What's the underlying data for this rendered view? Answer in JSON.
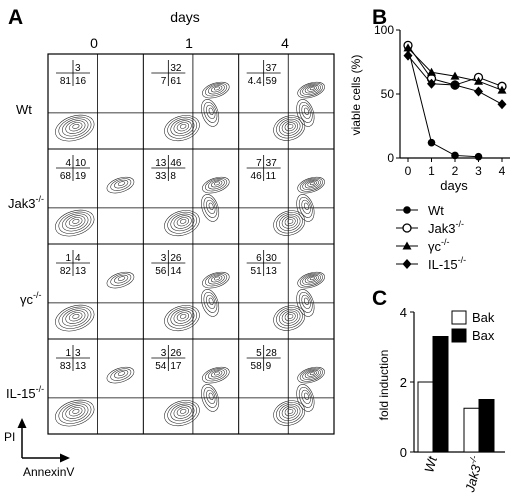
{
  "panel_letters": [
    "A",
    "B",
    "C"
  ],
  "panel_a": {
    "top_label": "days",
    "day_labels": [
      "0",
      "1",
      "4"
    ],
    "row_labels": [
      "Wt",
      "Jak3",
      "γc",
      "IL-15"
    ],
    "row_label_superscript": "-/-",
    "axis_labels": {
      "y": "PI",
      "x": "AnnexinV"
    },
    "quadrant_values": [
      [
        [
          "3",
          "81",
          "16"
        ],
        [
          "32",
          "7",
          "61"
        ],
        [
          "37",
          "4.4",
          "59"
        ]
      ],
      [
        [
          "4",
          "10",
          "68",
          "19"
        ],
        [
          "13",
          "46",
          "33",
          "8"
        ],
        [
          "7",
          "37",
          "46",
          "11"
        ]
      ],
      [
        [
          "1",
          "4",
          "82",
          "13"
        ],
        [
          "3",
          "26",
          "56",
          "14"
        ],
        [
          "6",
          "30",
          "51",
          "13"
        ]
      ],
      [
        [
          "1",
          "3",
          "83",
          "13"
        ],
        [
          "3",
          "26",
          "54",
          "17"
        ],
        [
          "5",
          "28",
          "58",
          "9"
        ]
      ]
    ]
  },
  "chart_data": [
    {
      "panel": "B",
      "type": "line",
      "xlabel": "days",
      "ylabel": "viable cells (%)",
      "x": [
        0,
        1,
        2,
        3,
        4
      ],
      "xlim": [
        0,
        4
      ],
      "ylim": [
        0,
        100
      ],
      "xticks": [
        "0",
        "1",
        "2",
        "3",
        "4"
      ],
      "yticks": [
        "0",
        "50",
        "100"
      ],
      "legend_position": "below",
      "series": [
        {
          "name": "Wt",
          "marker": "filled-circle",
          "values": [
            86,
            12,
            2,
            1,
            null
          ]
        },
        {
          "name": "Jak3",
          "name_superscript": "-/-",
          "marker": "open-circle",
          "values": [
            88,
            62,
            57,
            63,
            56
          ]
        },
        {
          "name": "γc",
          "name_superscript": "-/-",
          "marker": "filled-triangle",
          "values": [
            86,
            67,
            64,
            60,
            53
          ]
        },
        {
          "name": "IL-15",
          "name_superscript": "-/-",
          "marker": "filled-diamond",
          "values": [
            80,
            58,
            57,
            52,
            42
          ]
        }
      ]
    },
    {
      "panel": "C",
      "type": "bar",
      "ylabel": "fold induction",
      "categories": [
        "Wt",
        "Jak3"
      ],
      "category_superscripts": [
        "",
        "-/-"
      ],
      "ylim": [
        0,
        4
      ],
      "yticks": [
        "0",
        "2",
        "4"
      ],
      "legend_position": "top-right",
      "series": [
        {
          "name": "Bak",
          "fill": "#ffffff",
          "values": [
            2.0,
            1.25
          ]
        },
        {
          "name": "Bax",
          "fill": "#000000",
          "values": [
            3.3,
            1.5
          ]
        }
      ]
    }
  ]
}
